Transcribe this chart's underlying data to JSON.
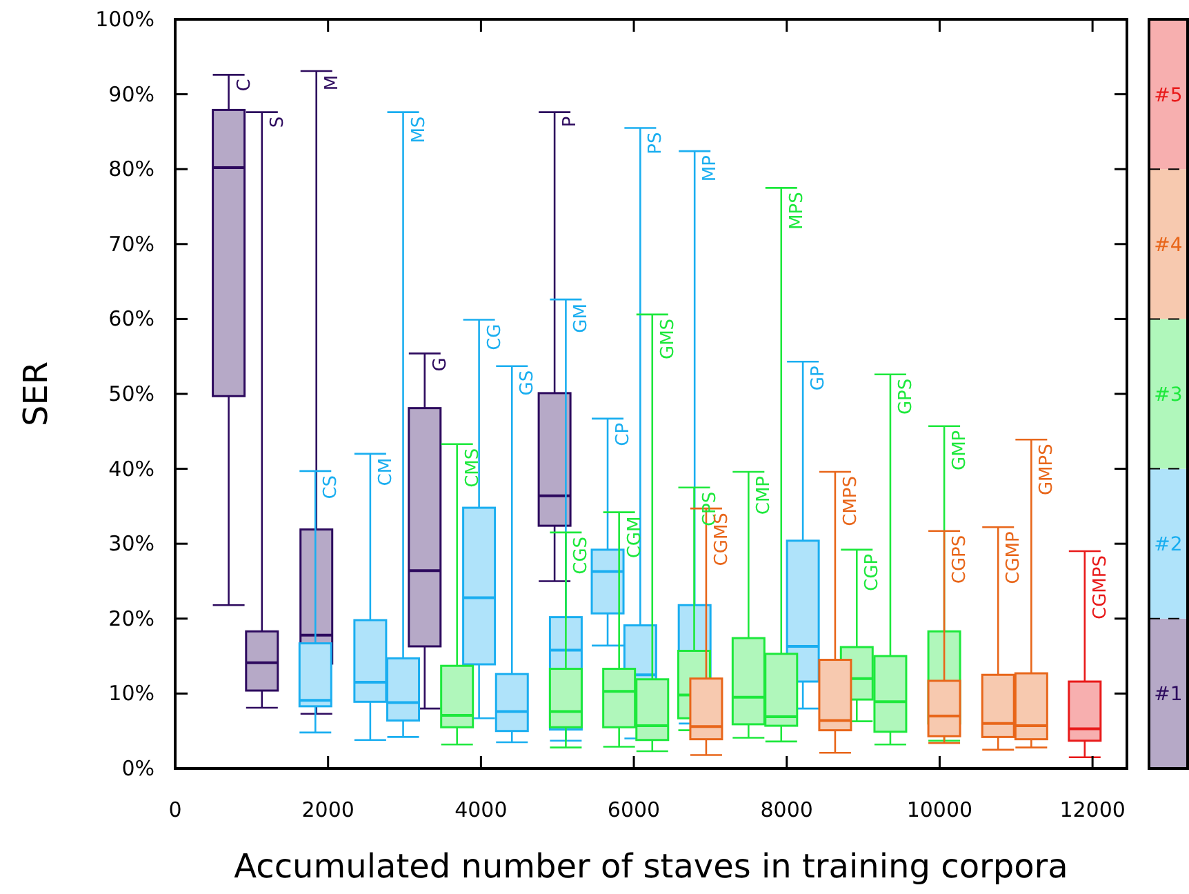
{
  "chart_data": {
    "type": "box",
    "xlabel": "Accumulated number of staves in training corpora",
    "ylabel": "SER",
    "xlim": [
      0,
      12450
    ],
    "xticks": [
      0,
      2000,
      4000,
      6000,
      8000,
      10000,
      12000
    ],
    "ylim": [
      0,
      100
    ],
    "yticks": [
      {
        "value": 0,
        "label": "0%"
      },
      {
        "value": 10,
        "label": "10%"
      },
      {
        "value": 20,
        "label": "20%"
      },
      {
        "value": 30,
        "label": "30%"
      },
      {
        "value": 40,
        "label": "40%"
      },
      {
        "value": 50,
        "label": "50%"
      },
      {
        "value": 60,
        "label": "60%"
      },
      {
        "value": 70,
        "label": "70%"
      },
      {
        "value": 80,
        "label": "80%"
      },
      {
        "value": 90,
        "label": "90%"
      },
      {
        "value": 100,
        "label": "100%"
      }
    ],
    "grid": false,
    "legend": "right",
    "series": [
      {
        "name": "#1",
        "color": "#2d0a5e",
        "x": [
          700,
          1135,
          1847,
          3264,
          4963
        ],
        "boxes": [
          {
            "low": 21.8,
            "q1": 49.7,
            "median": 80.2,
            "q3": 87.9,
            "high": 92.6
          },
          {
            "low": 8.1,
            "q1": 10.4,
            "median": 14.1,
            "q3": 18.3,
            "high": 87.6
          },
          {
            "low": 7.3,
            "q1": 14,
            "median": 17.8,
            "q3": 31.9,
            "high": 93.1
          },
          {
            "low": 8,
            "q1": 16.3,
            "median": 26.4,
            "q3": 48.1,
            "high": 55.4
          },
          {
            "low": 25,
            "q1": 32.4,
            "median": 36.4,
            "q3": 50.1,
            "high": 87.6
          }
        ]
      },
      {
        "name": "#2",
        "color": "#1aaef0",
        "x": [
          1834,
          2552,
          2982,
          3975,
          4405,
          5110,
          5657,
          6084,
          6795,
          8211
        ],
        "boxes": [
          {
            "low": 4.8,
            "q1": 8.3,
            "median": 9.1,
            "q3": 16.7,
            "high": 39.7
          },
          {
            "low": 3.8,
            "q1": 8.9,
            "median": 11.5,
            "q3": 19.8,
            "high": 42
          },
          {
            "low": 4.2,
            "q1": 6.4,
            "median": 8.8,
            "q3": 14.7,
            "high": 87.6
          },
          {
            "low": 6.7,
            "q1": 13.9,
            "median": 22.8,
            "q3": 34.8,
            "high": 59.9
          },
          {
            "low": 3.5,
            "q1": 5,
            "median": 7.6,
            "q3": 12.6,
            "high": 53.7
          },
          {
            "low": 3.7,
            "q1": 5.2,
            "median": 15.8,
            "q3": 20.2,
            "high": 62.6
          },
          {
            "low": 16.4,
            "q1": 20.7,
            "median": 26.3,
            "q3": 29.2,
            "high": 46.7
          },
          {
            "low": 4,
            "q1": 11,
            "median": 12.5,
            "q3": 19.1,
            "high": 85.5
          },
          {
            "low": 6,
            "q1": 9.5,
            "median": 10.8,
            "q3": 21.8,
            "high": 82.4
          },
          {
            "low": 8,
            "q1": 11.6,
            "median": 16.3,
            "q3": 30.4,
            "high": 54.3
          }
        ]
      },
      {
        "name": "#3",
        "color": "#1de83c",
        "x": [
          3687,
          5110,
          5807,
          6241,
          6789,
          7500,
          7928,
          8916,
          9355,
          10060
        ],
        "boxes": [
          {
            "low": 3.2,
            "q1": 5.5,
            "median": 7.1,
            "q3": 13.7,
            "high": 43.3
          },
          {
            "low": 2.8,
            "q1": 5.5,
            "median": 7.6,
            "q3": 13.3,
            "high": 31.5
          },
          {
            "low": 2.9,
            "q1": 5.5,
            "median": 10.3,
            "q3": 13.3,
            "high": 34.2
          },
          {
            "low": 2.3,
            "q1": 3.8,
            "median": 5.7,
            "q3": 11.9,
            "high": 60.6
          },
          {
            "low": 5.1,
            "q1": 6.7,
            "median": 9.8,
            "q3": 15.7,
            "high": 37.5
          },
          {
            "low": 4.1,
            "q1": 5.9,
            "median": 9.5,
            "q3": 17.4,
            "high": 39.6
          },
          {
            "low": 3.6,
            "q1": 5.7,
            "median": 6.9,
            "q3": 15.3,
            "high": 77.5
          },
          {
            "low": 6.3,
            "q1": 9.2,
            "median": 12,
            "q3": 16.2,
            "high": 29.2
          },
          {
            "low": 3.2,
            "q1": 4.9,
            "median": 8.9,
            "q3": 15,
            "high": 52.6
          },
          {
            "low": 3.7,
            "q1": 6,
            "median": 8.4,
            "q3": 18.3,
            "high": 45.7
          }
        ]
      },
      {
        "name": "#4",
        "color": "#e8661a",
        "x": [
          6946,
          8633,
          10060,
          10765,
          11199
        ],
        "boxes": [
          {
            "low": 1.8,
            "q1": 3.9,
            "median": 5.6,
            "q3": 12,
            "high": 34.7
          },
          {
            "low": 2.1,
            "q1": 5.1,
            "median": 6.4,
            "q3": 14.5,
            "high": 39.6
          },
          {
            "low": 3.4,
            "q1": 4.3,
            "median": 7,
            "q3": 11.7,
            "high": 31.7
          },
          {
            "low": 2.5,
            "q1": 4.2,
            "median": 6,
            "q3": 12.5,
            "high": 32.2
          },
          {
            "low": 2.8,
            "q1": 3.9,
            "median": 5.7,
            "q3": 12.7,
            "high": 43.9
          }
        ]
      },
      {
        "name": "#5",
        "color": "#e81a1a",
        "x": [
          11898
        ],
        "boxes": [
          {
            "low": 1.5,
            "q1": 3.7,
            "median": 5.3,
            "q3": 11.6,
            "high": 29
          }
        ]
      }
    ],
    "annotations": [
      {
        "text": "C",
        "x": 700,
        "y": 92.6
      },
      {
        "text": "S",
        "x": 1135,
        "y": 87.6
      },
      {
        "text": "M",
        "x": 1847,
        "y": 93.1
      },
      {
        "text": "G",
        "x": 3264,
        "y": 55.4
      },
      {
        "text": "P",
        "x": 4963,
        "y": 87.6
      },
      {
        "text": "CS",
        "x": 1834,
        "y": 39.7
      },
      {
        "text": "CM",
        "x": 2552,
        "y": 42
      },
      {
        "text": "MS",
        "x": 2982,
        "y": 87.6
      },
      {
        "text": "CG",
        "x": 3975,
        "y": 59.9
      },
      {
        "text": "GS",
        "x": 4405,
        "y": 53.7
      },
      {
        "text": "GM",
        "x": 5110,
        "y": 62.6
      },
      {
        "text": "CP",
        "x": 5657,
        "y": 46.7
      },
      {
        "text": "PS",
        "x": 6084,
        "y": 85.5
      },
      {
        "text": "MP",
        "x": 6795,
        "y": 82.4
      },
      {
        "text": "GP",
        "x": 8211,
        "y": 54.3
      },
      {
        "text": "CMS",
        "x": 3687,
        "y": 43.3
      },
      {
        "text": "CGS",
        "x": 5110,
        "y": 31.5
      },
      {
        "text": "CGM",
        "x": 5807,
        "y": 34.2
      },
      {
        "text": "GMS",
        "x": 6241,
        "y": 60.6
      },
      {
        "text": "CPS",
        "x": 6789,
        "y": 37.5
      },
      {
        "text": "CMP",
        "x": 7500,
        "y": 39.6
      },
      {
        "text": "MPS",
        "x": 7928,
        "y": 77.5
      },
      {
        "text": "CGP",
        "x": 8916,
        "y": 29.2
      },
      {
        "text": "GPS",
        "x": 9355,
        "y": 52.6
      },
      {
        "text": "GMP",
        "x": 10060,
        "y": 45.7
      },
      {
        "text": "CGMS",
        "x": 6946,
        "y": 34.7
      },
      {
        "text": "CMPS",
        "x": 8633,
        "y": 39.6
      },
      {
        "text": "CGPS",
        "x": 10060,
        "y": 31.7
      },
      {
        "text": "CGMP",
        "x": 10765,
        "y": 32.2
      },
      {
        "text": "GMPS",
        "x": 11199,
        "y": 43.9
      },
      {
        "text": "CGMPS",
        "x": 11898,
        "y": 29
      }
    ]
  }
}
